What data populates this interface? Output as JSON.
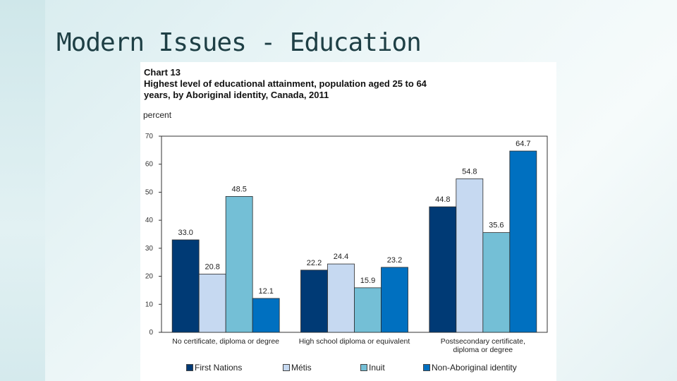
{
  "slide": {
    "title": "Modern Issues - Education"
  },
  "chart_data": {
    "type": "bar",
    "chart_number": "Chart 13",
    "title_lines": [
      "Highest level of educational attainment, population aged 25 to 64",
      "years, by Aboriginal identity, Canada, 2011"
    ],
    "ylabel": "percent",
    "ylim": [
      0,
      70
    ],
    "yticks": [
      0,
      10,
      20,
      30,
      40,
      50,
      60,
      70
    ],
    "grid": false,
    "legend_position": "bottom",
    "categories": [
      [
        "No certificate, diploma or degree"
      ],
      [
        "High school diploma or equivalent"
      ],
      [
        "Postsecondary certificate,",
        "diploma or degree"
      ]
    ],
    "series": [
      {
        "name": "First Nations",
        "color": "#003a75",
        "values": [
          33.0,
          22.2,
          44.8
        ]
      },
      {
        "name": "Métis",
        "color": "#c6d9f1",
        "values": [
          20.8,
          24.4,
          54.8
        ]
      },
      {
        "name": "Inuit",
        "color": "#74bfd6",
        "values": [
          48.5,
          15.9,
          35.6
        ]
      },
      {
        "name": "Non-Aboriginal identity",
        "color": "#0070c0",
        "values": [
          12.1,
          23.2,
          64.7
        ]
      }
    ]
  }
}
